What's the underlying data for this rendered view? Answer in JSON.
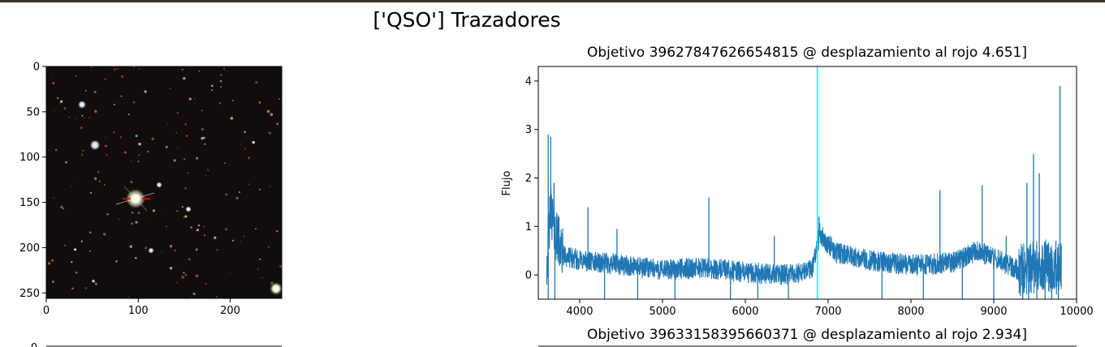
{
  "figure": {
    "suptitle": "['QSO'] Trazadores"
  },
  "chart_data": [
    {
      "type": "image",
      "x_ticks": [
        0,
        100,
        200
      ],
      "y_ticks": [
        0,
        50,
        100,
        150,
        200,
        250
      ],
      "xlim": [
        0,
        256
      ],
      "ylim": [
        256,
        0
      ],
      "marker": {
        "x": 98,
        "y": 146,
        "color": "#ff0000"
      }
    },
    {
      "type": "line",
      "title": "Objetivo 39627847626654815 @ desplazamiento al rojo 4.651]",
      "ylabel": "Flujo",
      "xlabel": "",
      "xlim": [
        3500,
        10000
      ],
      "ylim": [
        -0.5,
        4.3
      ],
      "x_ticks": [
        4000,
        5000,
        6000,
        7000,
        8000,
        9000,
        10000
      ],
      "y_ticks": [
        0,
        1,
        2,
        3,
        4
      ],
      "grid": false,
      "series_color": "#1f77b4",
      "vline": {
        "x": 6870,
        "color": "#00ffff"
      },
      "anchors": [
        {
          "x": 3600,
          "y": 0.2
        },
        {
          "x": 3650,
          "y": 1.4
        },
        {
          "x": 3700,
          "y": 0.9
        },
        {
          "x": 3800,
          "y": 0.4
        },
        {
          "x": 4000,
          "y": 0.3
        },
        {
          "x": 4500,
          "y": 0.2
        },
        {
          "x": 5000,
          "y": 0.1
        },
        {
          "x": 5500,
          "y": 0.15
        },
        {
          "x": 6000,
          "y": 0.05
        },
        {
          "x": 6500,
          "y": 0.0
        },
        {
          "x": 6800,
          "y": 0.1
        },
        {
          "x": 6900,
          "y": 0.85
        },
        {
          "x": 7100,
          "y": 0.45
        },
        {
          "x": 7500,
          "y": 0.3
        },
        {
          "x": 8000,
          "y": 0.2
        },
        {
          "x": 8500,
          "y": 0.25
        },
        {
          "x": 8800,
          "y": 0.5
        },
        {
          "x": 9000,
          "y": 0.35
        },
        {
          "x": 9300,
          "y": 0.1
        },
        {
          "x": 9600,
          "y": 0.2
        },
        {
          "x": 9820,
          "y": 0.1
        }
      ],
      "spikes": [
        {
          "x": 3620,
          "y": 2.9
        },
        {
          "x": 3650,
          "y": 2.85
        },
        {
          "x": 3690,
          "y": 1.9
        },
        {
          "x": 3750,
          "y": 1.2
        },
        {
          "x": 4100,
          "y": 1.4
        },
        {
          "x": 4450,
          "y": 0.95
        },
        {
          "x": 5560,
          "y": 1.6
        },
        {
          "x": 6350,
          "y": 0.8
        },
        {
          "x": 6890,
          "y": 1.2
        },
        {
          "x": 8350,
          "y": 1.75
        },
        {
          "x": 8860,
          "y": 1.85
        },
        {
          "x": 9150,
          "y": 0.8
        },
        {
          "x": 9400,
          "y": 1.9
        },
        {
          "x": 9480,
          "y": 2.5
        },
        {
          "x": 9550,
          "y": 2.1
        },
        {
          "x": 9750,
          "y": 0.7
        },
        {
          "x": 9800,
          "y": 3.9
        }
      ],
      "dips": [
        {
          "x": 3620,
          "y": -0.5
        },
        {
          "x": 3700,
          "y": -0.5
        },
        {
          "x": 4300,
          "y": -0.5
        },
        {
          "x": 4700,
          "y": -0.5
        },
        {
          "x": 5150,
          "y": -0.5
        },
        {
          "x": 5820,
          "y": -0.5
        },
        {
          "x": 6150,
          "y": -0.5
        },
        {
          "x": 6520,
          "y": -0.5
        },
        {
          "x": 7650,
          "y": -0.5
        },
        {
          "x": 8150,
          "y": -0.5
        },
        {
          "x": 8620,
          "y": -0.5
        },
        {
          "x": 9000,
          "y": -0.5
        },
        {
          "x": 9350,
          "y": -0.5
        },
        {
          "x": 9420,
          "y": -0.5
        },
        {
          "x": 9520,
          "y": -0.5
        },
        {
          "x": 9620,
          "y": -0.5
        },
        {
          "x": 9700,
          "y": -0.5
        },
        {
          "x": 9780,
          "y": -0.5
        }
      ]
    },
    {
      "type": "line",
      "title": "Objetivo 39633158395660371 @ desplazamiento al rojo 2.934]",
      "y_ticks": [
        0
      ]
    }
  ]
}
